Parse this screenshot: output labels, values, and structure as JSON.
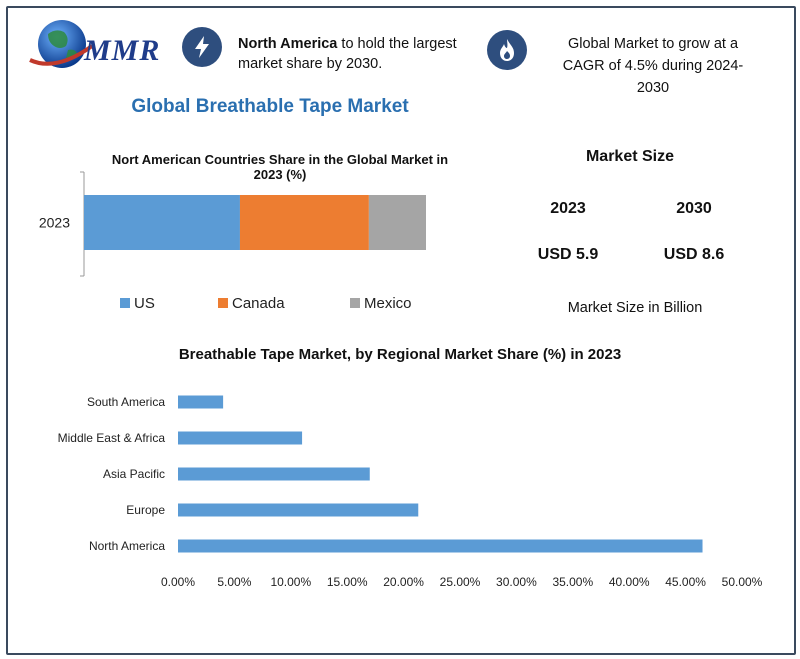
{
  "brand": {
    "logo_text": "MMR"
  },
  "highlights": {
    "north_america_bold": "North America",
    "north_america_rest": "to hold the largest market share by 2030.",
    "cagr_text": "Global Market to grow at a CAGR of 4.5% during 2024-2030"
  },
  "main_title": "Global Breathable Tape Market",
  "market_size": {
    "title": "Market Size",
    "years": [
      "2023",
      "2030"
    ],
    "values": [
      "USD 5.9",
      "USD 8.6"
    ],
    "note": "Market Size in Billion"
  },
  "chart_data": [
    {
      "type": "bar",
      "orientation": "horizontal",
      "stacked": true,
      "title": "Nort American Countries Share in the Global Market in 2023 (%)",
      "categories": [
        "2023"
      ],
      "series": [
        {
          "name": "US",
          "values": [
            45.6
          ],
          "color": "#5b9bd5"
        },
        {
          "name": "Canada",
          "values": [
            37.7
          ],
          "color": "#ed7d31"
        },
        {
          "name": "Mexico",
          "values": [
            16.7
          ],
          "color": "#a5a5a5"
        }
      ],
      "xlim": [
        0,
        100
      ],
      "legend": "bottom"
    },
    {
      "type": "bar",
      "orientation": "horizontal",
      "title": "Breathable Tape Market, by Regional Market Share (%) in 2023",
      "categories": [
        "South America",
        "Middle East & Africa",
        "Asia Pacific",
        "Europe",
        "North America"
      ],
      "values": [
        4.0,
        11.0,
        17.0,
        21.3,
        46.5
      ],
      "xlim": [
        0,
        50
      ],
      "xticks": [
        "0.00%",
        "5.00%",
        "10.00%",
        "15.00%",
        "20.00%",
        "25.00%",
        "30.00%",
        "35.00%",
        "40.00%",
        "45.00%",
        "50.00%"
      ],
      "color": "#5b9bd5",
      "grid": false
    }
  ]
}
